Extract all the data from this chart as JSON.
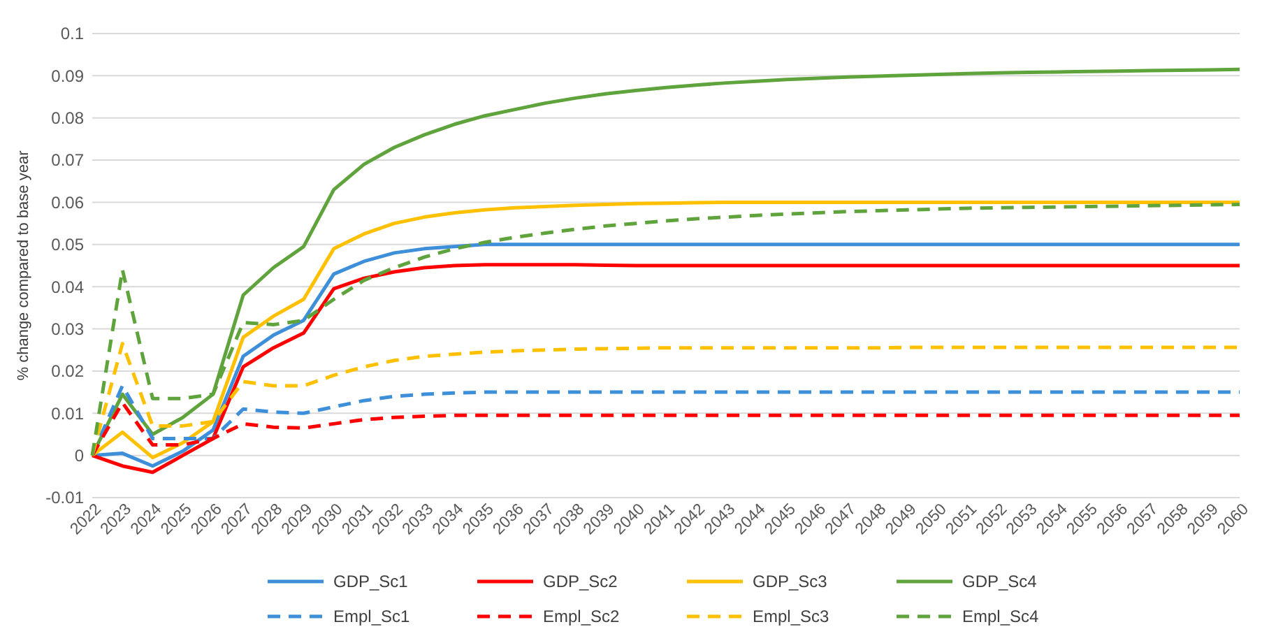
{
  "chart_data": {
    "type": "line",
    "ylabel": "% change compared to base year",
    "categories": [
      "2022",
      "2023",
      "2024",
      "2025",
      "2026",
      "2027",
      "2028",
      "2029",
      "2030",
      "2031",
      "2032",
      "2033",
      "2034",
      "2035",
      "2036",
      "2037",
      "2038",
      "2039",
      "2040",
      "2041",
      "2042",
      "2043",
      "2044",
      "2045",
      "2046",
      "2047",
      "2048",
      "2049",
      "2050",
      "2051",
      "2052",
      "2053",
      "2054",
      "2055",
      "2056",
      "2057",
      "2058",
      "2059",
      "2060"
    ],
    "ylim": [
      -0.01,
      0.1
    ],
    "yticks": [
      -0.01,
      0,
      0.01,
      0.02,
      0.03,
      0.04,
      0.05,
      0.06,
      0.07,
      0.08,
      0.09,
      0.1
    ],
    "grid": "y",
    "legend": "bottom",
    "marker": "none",
    "series": [
      {
        "name": "GDP_Sc1",
        "color": "#3c8fd8",
        "line_style": "solid",
        "values": [
          0,
          0.0005,
          -0.0025,
          0.001,
          0.006,
          0.0235,
          0.0285,
          0.032,
          0.043,
          0.046,
          0.048,
          0.049,
          0.0495,
          0.05,
          0.05,
          0.05,
          0.05,
          0.05,
          0.05,
          0.05,
          0.05,
          0.05,
          0.05,
          0.05,
          0.05,
          0.05,
          0.05,
          0.05,
          0.05,
          0.05,
          0.05,
          0.05,
          0.05,
          0.05,
          0.05,
          0.05,
          0.05,
          0.05,
          0.05
        ]
      },
      {
        "name": "GDP_Sc2",
        "color": "#ff0000",
        "line_style": "solid",
        "values": [
          0,
          -0.0025,
          -0.004,
          0,
          0.004,
          0.021,
          0.0255,
          0.029,
          0.0395,
          0.042,
          0.0435,
          0.0445,
          0.045,
          0.0452,
          0.0452,
          0.0452,
          0.0452,
          0.0451,
          0.045,
          0.045,
          0.045,
          0.045,
          0.045,
          0.045,
          0.045,
          0.045,
          0.045,
          0.045,
          0.045,
          0.045,
          0.045,
          0.045,
          0.045,
          0.045,
          0.045,
          0.045,
          0.045,
          0.045,
          0.045
        ]
      },
      {
        "name": "GDP_Sc3",
        "color": "#ffc000",
        "line_style": "solid",
        "values": [
          0,
          0.0055,
          -0.0005,
          0.003,
          0.008,
          0.028,
          0.033,
          0.037,
          0.049,
          0.0525,
          0.055,
          0.0565,
          0.0575,
          0.0582,
          0.0587,
          0.059,
          0.0593,
          0.0595,
          0.0597,
          0.0598,
          0.0599,
          0.06,
          0.06,
          0.06,
          0.06,
          0.06,
          0.06,
          0.06,
          0.06,
          0.06,
          0.06,
          0.06,
          0.06,
          0.06,
          0.06,
          0.06,
          0.06,
          0.06,
          0.06
        ]
      },
      {
        "name": "GDP_Sc4",
        "color": "#5fa33c",
        "line_style": "solid",
        "values": [
          0,
          0.0145,
          0.005,
          0.009,
          0.0145,
          0.038,
          0.0445,
          0.0495,
          0.063,
          0.069,
          0.073,
          0.076,
          0.0785,
          0.0805,
          0.082,
          0.0835,
          0.0847,
          0.0857,
          0.0865,
          0.0872,
          0.0878,
          0.0883,
          0.0887,
          0.0891,
          0.0894,
          0.0897,
          0.0899,
          0.0901,
          0.0903,
          0.0905,
          0.0907,
          0.0908,
          0.0909,
          0.091,
          0.0911,
          0.0912,
          0.0913,
          0.0914,
          0.0915
        ]
      },
      {
        "name": "Empl_Sc1",
        "color": "#3c8fd8",
        "line_style": "dashed",
        "values": [
          0,
          0.0165,
          0.004,
          0.004,
          0.004,
          0.011,
          0.0103,
          0.01,
          0.0115,
          0.013,
          0.014,
          0.0145,
          0.0148,
          0.015,
          0.015,
          0.015,
          0.015,
          0.015,
          0.015,
          0.015,
          0.015,
          0.015,
          0.015,
          0.015,
          0.015,
          0.015,
          0.015,
          0.015,
          0.015,
          0.015,
          0.015,
          0.015,
          0.015,
          0.015,
          0.015,
          0.015,
          0.015,
          0.015,
          0.015
        ]
      },
      {
        "name": "Empl_Sc2",
        "color": "#ff0000",
        "line_style": "dashed",
        "values": [
          0,
          0.0125,
          0.0025,
          0.0025,
          0.004,
          0.0075,
          0.0067,
          0.0065,
          0.0075,
          0.0085,
          0.009,
          0.0093,
          0.0095,
          0.0095,
          0.0095,
          0.0095,
          0.0095,
          0.0095,
          0.0095,
          0.0095,
          0.0095,
          0.0095,
          0.0095,
          0.0095,
          0.0095,
          0.0095,
          0.0095,
          0.0095,
          0.0095,
          0.0095,
          0.0095,
          0.0095,
          0.0095,
          0.0095,
          0.0095,
          0.0095,
          0.0095,
          0.0095,
          0.0095
        ]
      },
      {
        "name": "Empl_Sc3",
        "color": "#ffc000",
        "line_style": "dashed",
        "values": [
          0,
          0.0265,
          0.007,
          0.007,
          0.008,
          0.0175,
          0.0165,
          0.0165,
          0.019,
          0.021,
          0.0225,
          0.0235,
          0.024,
          0.0245,
          0.0248,
          0.025,
          0.0252,
          0.0253,
          0.0254,
          0.0255,
          0.0255,
          0.0255,
          0.0255,
          0.0255,
          0.0255,
          0.0255,
          0.0255,
          0.0256,
          0.0256,
          0.0256,
          0.0256,
          0.0256,
          0.0256,
          0.0256,
          0.0256,
          0.0256,
          0.0256,
          0.0256,
          0.0256
        ]
      },
      {
        "name": "Empl_Sc4",
        "color": "#5fa33c",
        "line_style": "dashed",
        "values": [
          0,
          0.044,
          0.0135,
          0.0135,
          0.0145,
          0.0315,
          0.031,
          0.032,
          0.037,
          0.0415,
          0.0445,
          0.047,
          0.049,
          0.0505,
          0.0517,
          0.0527,
          0.0536,
          0.0544,
          0.055,
          0.0556,
          0.0561,
          0.0565,
          0.0569,
          0.0572,
          0.0575,
          0.0578,
          0.058,
          0.0582,
          0.0584,
          0.0586,
          0.0587,
          0.0588,
          0.0589,
          0.059,
          0.0591,
          0.0592,
          0.0593,
          0.0594,
          0.0595
        ]
      }
    ]
  }
}
